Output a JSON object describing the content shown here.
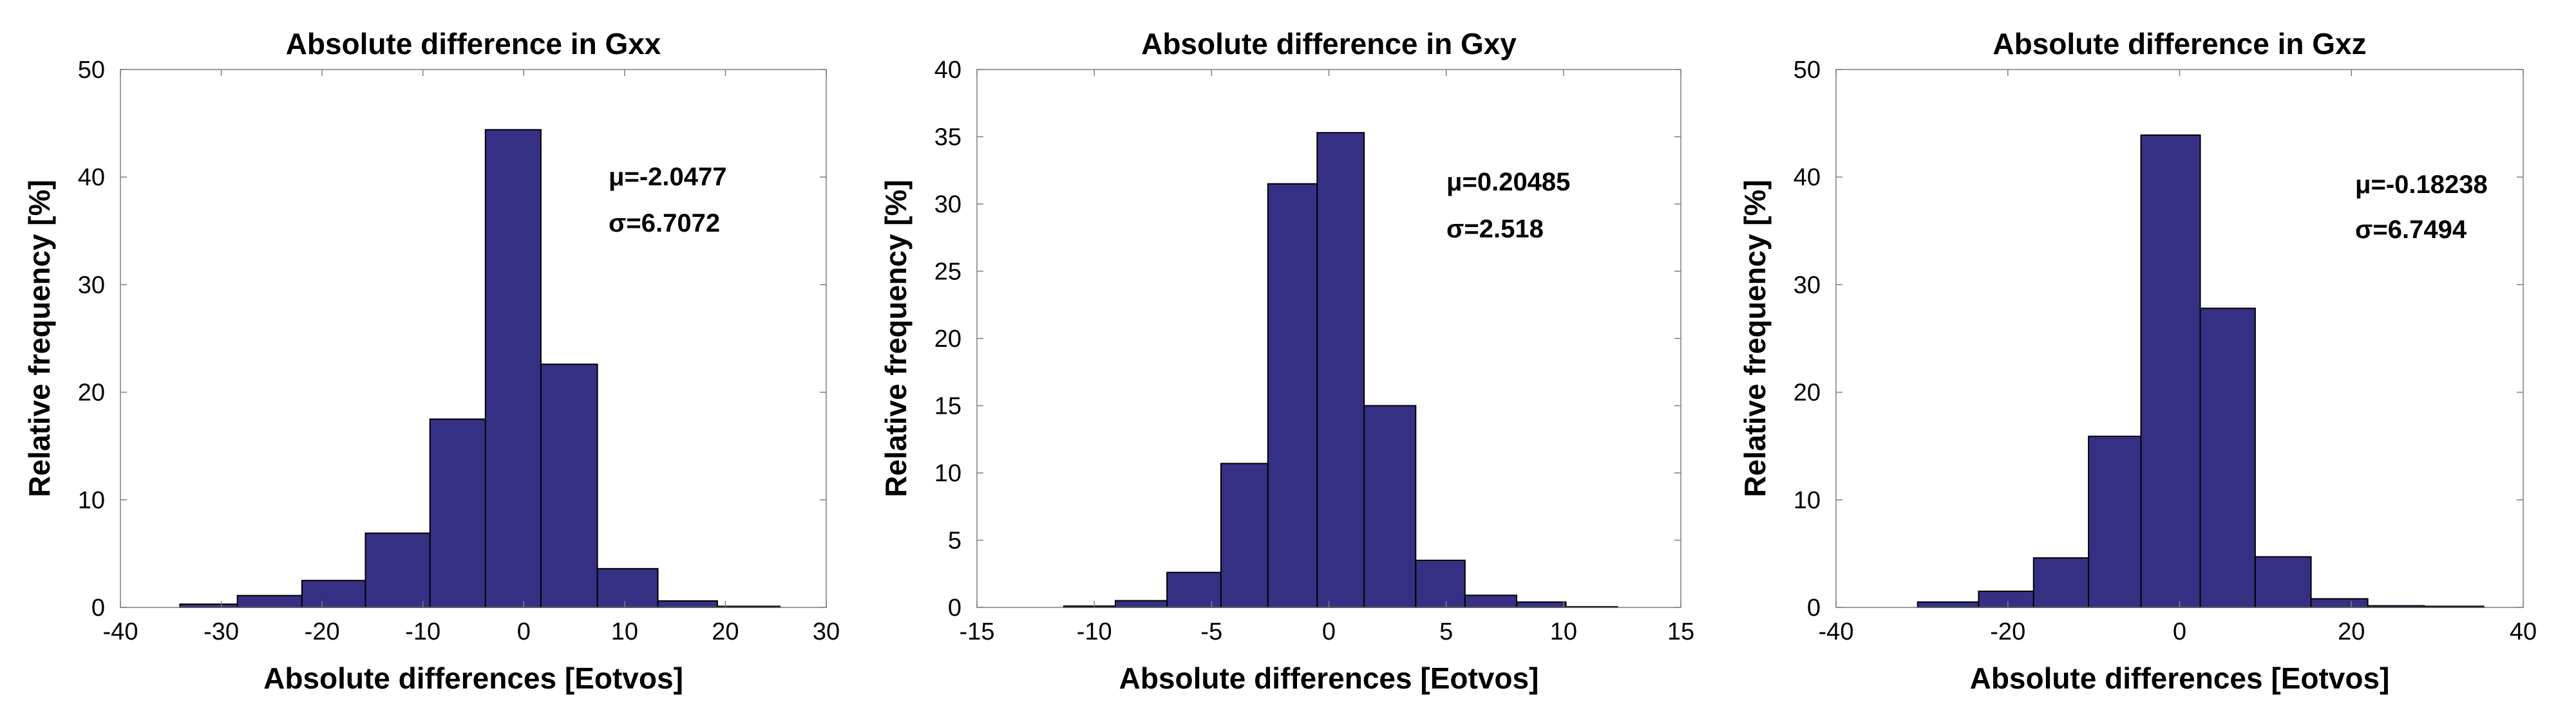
{
  "chart_data": [
    {
      "type": "bar",
      "title": "Absolute difference in Gxx",
      "xlabel": "Absolute differences [Eotvos]",
      "ylabel": "Relative frequency [%]",
      "xlim": [
        -40,
        30
      ],
      "ylim": [
        0,
        50
      ],
      "xticks": [
        -40,
        -30,
        -20,
        -10,
        0,
        10,
        20,
        30
      ],
      "yticks": [
        0,
        10,
        20,
        30,
        40,
        50
      ],
      "bin_edges": [
        -34.1,
        -28.4,
        -22.0,
        -15.7,
        -9.3,
        -3.8,
        1.7,
        7.3,
        13.3,
        19.2,
        25.4
      ],
      "values": [
        0.3,
        1.1,
        2.5,
        6.9,
        17.5,
        44.4,
        22.6,
        3.6,
        0.6,
        0.1
      ],
      "annotations": {
        "mu": "μ=-2.0477",
        "sigma": "σ=6.7072"
      },
      "grid": false
    },
    {
      "type": "bar",
      "title": "Absolute difference in Gxy",
      "xlabel": "Absolute differences [Eotvos]",
      "ylabel": "Relative frequency [%]",
      "xlim": [
        -15,
        15
      ],
      "ylim": [
        0,
        40
      ],
      "xticks": [
        -15,
        -10,
        -5,
        0,
        5,
        10,
        15
      ],
      "yticks": [
        0,
        5,
        10,
        15,
        20,
        25,
        30,
        35,
        40
      ],
      "bin_edges": [
        -11.3,
        -9.1,
        -6.9,
        -4.6,
        -2.6,
        -0.5,
        1.5,
        3.7,
        5.8,
        8.0,
        10.1,
        12.3
      ],
      "values": [
        0.1,
        0.5,
        2.6,
        10.7,
        31.5,
        35.3,
        15.0,
        3.5,
        0.9,
        0.4,
        0.05
      ],
      "annotations": {
        "mu": "μ=0.20485",
        "sigma": "σ=2.518"
      },
      "grid": false
    },
    {
      "type": "bar",
      "title": "Absolute difference in Gxz",
      "xlabel": "Absolute differences [Eotvos]",
      "ylabel": "Relative frequency [%]",
      "xlim": [
        -40,
        40
      ],
      "ylim": [
        0,
        50
      ],
      "xticks": [
        -40,
        -20,
        0,
        20,
        40
      ],
      "yticks": [
        0,
        10,
        20,
        30,
        40,
        50
      ],
      "bin_edges": [
        -30.5,
        -23.4,
        -17.0,
        -10.6,
        -4.5,
        2.4,
        8.8,
        15.3,
        21.9,
        28.5,
        35.4
      ],
      "values": [
        0.5,
        1.5,
        4.6,
        15.9,
        43.9,
        27.8,
        4.7,
        0.8,
        0.15,
        0.1
      ],
      "annotations": {
        "mu": "μ=-0.18238",
        "sigma": "σ=6.7494"
      },
      "grid": false
    }
  ]
}
